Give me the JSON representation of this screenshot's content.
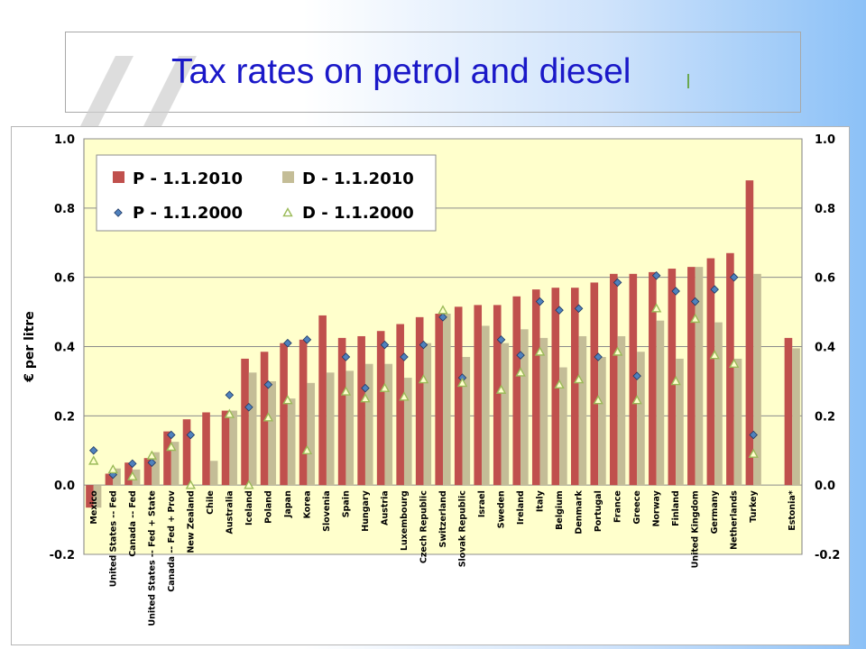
{
  "slide": {
    "title": "Tax rates on petrol and diesel"
  },
  "chart_data": {
    "type": "bar",
    "ylabel": "€ per litre",
    "ylim": [
      -0.2,
      1.0
    ],
    "yticks": [
      "1.0",
      "0.8",
      "0.6",
      "0.4",
      "0.2",
      "0.0",
      "-0.2"
    ],
    "categories": [
      "Mexico",
      "United States -- Fed",
      "Canada -- Fed",
      "United States -- Fed + State",
      "Canada -- Fed + Prov",
      "New Zealand",
      "Chile",
      "Australia",
      "Iceland",
      "Poland",
      "Japan",
      "Korea",
      "Slovenia",
      "Spain",
      "Hungary",
      "Austria",
      "Luxembourg",
      "Czech Republic",
      "Switzerland",
      "Slovak Republic",
      "Israel",
      "Sweden",
      "Ireland",
      "Italy",
      "Belgium",
      "Denmark",
      "Portugal",
      "France",
      "Greece",
      "Norway",
      "Finland",
      "United Kingdom",
      "Germany",
      "Netherlands",
      "Turkey",
      "Estonia*"
    ],
    "series": [
      {
        "name": "P - 1.1.2010",
        "type": "bar",
        "color": "#c0504d",
        "values": [
          -0.065,
          0.033,
          0.065,
          0.078,
          0.155,
          0.19,
          0.21,
          0.215,
          0.365,
          0.385,
          0.41,
          0.42,
          0.49,
          0.425,
          0.43,
          0.445,
          0.465,
          0.485,
          0.495,
          0.515,
          0.52,
          0.52,
          0.545,
          0.565,
          0.57,
          0.57,
          0.585,
          0.61,
          0.61,
          0.615,
          0.625,
          0.63,
          0.655,
          0.67,
          0.88,
          0.425
        ]
      },
      {
        "name": "D - 1.1.2010",
        "type": "bar",
        "color": "#c4bd97",
        "values": [
          -0.065,
          0.048,
          0.045,
          0.095,
          0.125,
          null,
          0.07,
          0.215,
          0.325,
          0.3,
          0.25,
          0.295,
          0.325,
          0.33,
          0.35,
          0.35,
          0.31,
          0.41,
          0.495,
          0.37,
          0.46,
          0.41,
          0.45,
          0.425,
          0.34,
          0.43,
          0.37,
          0.43,
          0.385,
          0.475,
          0.365,
          0.63,
          0.47,
          0.365,
          0.61,
          0.395
        ]
      },
      {
        "name": "P - 1.1.2000",
        "type": "marker",
        "marker": "diamond",
        "color": "#4f81bd",
        "values": [
          0.1,
          0.03,
          0.062,
          0.065,
          0.145,
          0.145,
          null,
          0.26,
          0.225,
          0.29,
          0.41,
          0.42,
          null,
          0.37,
          0.28,
          0.405,
          0.37,
          0.405,
          0.485,
          0.31,
          null,
          0.42,
          0.375,
          0.53,
          0.505,
          0.51,
          0.37,
          0.585,
          0.315,
          0.605,
          0.56,
          0.53,
          0.565,
          0.6,
          0.145,
          null
        ]
      },
      {
        "name": "D - 1.1.2000",
        "type": "marker",
        "marker": "triangle",
        "color": "#9bbb59",
        "values": [
          0.07,
          0.045,
          0.025,
          0.085,
          0.11,
          0.0,
          null,
          0.205,
          0.0,
          0.195,
          0.245,
          0.1,
          null,
          0.27,
          0.25,
          0.28,
          0.255,
          0.305,
          0.505,
          0.295,
          null,
          0.275,
          0.325,
          0.385,
          0.29,
          0.305,
          0.245,
          0.385,
          0.245,
          0.51,
          0.3,
          0.48,
          0.375,
          0.35,
          0.09,
          null
        ]
      }
    ],
    "grid": true,
    "legend": "top-left",
    "secondary_axis": "right (mirrors left)"
  }
}
